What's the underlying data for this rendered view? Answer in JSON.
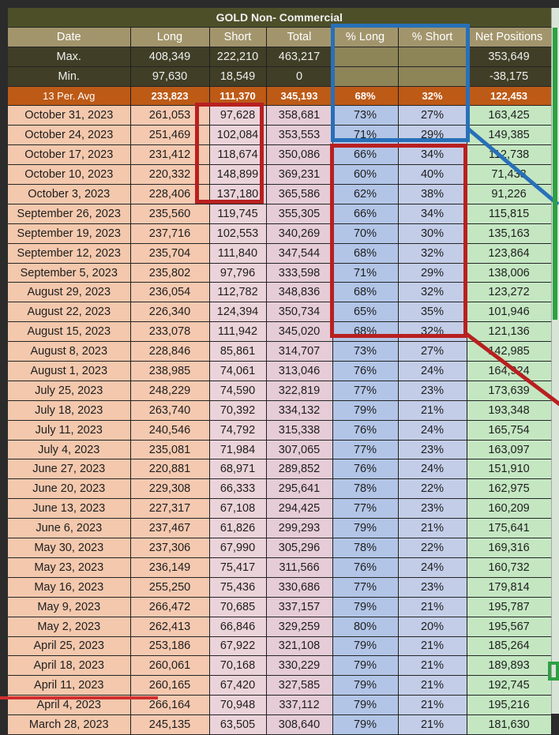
{
  "title": "GOLD Non- Commercial",
  "headers": [
    "Date",
    "Long",
    "Short",
    "Total",
    "% Long",
    "% Short",
    "Net Positions"
  ],
  "max": {
    "label": "Max.",
    "long": "408,349",
    "short": "222,210",
    "total": "463,217",
    "pct_long": "",
    "pct_short": "",
    "net": "353,649"
  },
  "min": {
    "label": "Min.",
    "long": "97,630",
    "short": "18,549",
    "total": "0",
    "pct_long": "",
    "pct_short": "",
    "net": "-38,175"
  },
  "avg": {
    "label": "13 Per. Avg",
    "long": "233,823",
    "short": "111,370",
    "total": "345,193",
    "pct_long": "68%",
    "pct_short": "32%",
    "net": "122,453"
  },
  "rows": [
    [
      "October 31, 2023",
      "261,053",
      "97,628",
      "358,681",
      "73%",
      "27%",
      "163,425"
    ],
    [
      "October 24, 2023",
      "251,469",
      "102,084",
      "353,553",
      "71%",
      "29%",
      "149,385"
    ],
    [
      "October 17, 2023",
      "231,412",
      "118,674",
      "350,086",
      "66%",
      "34%",
      "112,738"
    ],
    [
      "October 10, 2023",
      "220,332",
      "148,899",
      "369,231",
      "60%",
      "40%",
      "71,433"
    ],
    [
      "October 3, 2023",
      "228,406",
      "137,180",
      "365,586",
      "62%",
      "38%",
      "91,226"
    ],
    [
      "September 26, 2023",
      "235,560",
      "119,745",
      "355,305",
      "66%",
      "34%",
      "115,815"
    ],
    [
      "September 19, 2023",
      "237,716",
      "102,553",
      "340,269",
      "70%",
      "30%",
      "135,163"
    ],
    [
      "September 12, 2023",
      "235,704",
      "111,840",
      "347,544",
      "68%",
      "32%",
      "123,864"
    ],
    [
      "September 5, 2023",
      "235,802",
      "97,796",
      "333,598",
      "71%",
      "29%",
      "138,006"
    ],
    [
      "August 29, 2023",
      "236,054",
      "112,782",
      "348,836",
      "68%",
      "32%",
      "123,272"
    ],
    [
      "August 22, 2023",
      "226,340",
      "124,394",
      "350,734",
      "65%",
      "35%",
      "101,946"
    ],
    [
      "August 15, 2023",
      "233,078",
      "111,942",
      "345,020",
      "68%",
      "32%",
      "121,136"
    ],
    [
      "August 8, 2023",
      "228,846",
      "85,861",
      "314,707",
      "73%",
      "27%",
      "142,985"
    ],
    [
      "August 1, 2023",
      "238,985",
      "74,061",
      "313,046",
      "76%",
      "24%",
      "164,924"
    ],
    [
      "July 25, 2023",
      "248,229",
      "74,590",
      "322,819",
      "77%",
      "23%",
      "173,639"
    ],
    [
      "July 18, 2023",
      "263,740",
      "70,392",
      "334,132",
      "79%",
      "21%",
      "193,348"
    ],
    [
      "July 11, 2023",
      "240,546",
      "74,792",
      "315,338",
      "76%",
      "24%",
      "165,754"
    ],
    [
      "July 4, 2023",
      "235,081",
      "71,984",
      "307,065",
      "77%",
      "23%",
      "163,097"
    ],
    [
      "June 27, 2023",
      "220,881",
      "68,971",
      "289,852",
      "76%",
      "24%",
      "151,910"
    ],
    [
      "June 20, 2023",
      "229,308",
      "66,333",
      "295,641",
      "78%",
      "22%",
      "162,975"
    ],
    [
      "June 13, 2023",
      "227,317",
      "67,108",
      "294,425",
      "77%",
      "23%",
      "160,209"
    ],
    [
      "June 6, 2023",
      "237,467",
      "61,826",
      "299,293",
      "79%",
      "21%",
      "175,641"
    ],
    [
      "May 30, 2023",
      "237,306",
      "67,990",
      "305,296",
      "78%",
      "22%",
      "169,316"
    ],
    [
      "May 23, 2023",
      "236,149",
      "75,417",
      "311,566",
      "76%",
      "24%",
      "160,732"
    ],
    [
      "May 16, 2023",
      "255,250",
      "75,436",
      "330,686",
      "77%",
      "23%",
      "179,814"
    ],
    [
      "May 9, 2023",
      "266,472",
      "70,685",
      "337,157",
      "79%",
      "21%",
      "195,787"
    ],
    [
      "May 2, 2023",
      "262,413",
      "66,846",
      "329,259",
      "80%",
      "20%",
      "195,567"
    ],
    [
      "April 25, 2023",
      "253,186",
      "67,922",
      "321,108",
      "79%",
      "21%",
      "185,264"
    ],
    [
      "April 18, 2023",
      "260,061",
      "70,168",
      "330,229",
      "79%",
      "21%",
      "189,893"
    ],
    [
      "April 11, 2023",
      "260,165",
      "67,420",
      "327,585",
      "79%",
      "21%",
      "192,745"
    ],
    [
      "April 4, 2023",
      "266,164",
      "70,948",
      "337,112",
      "79%",
      "21%",
      "195,216"
    ],
    [
      "March 28, 2023",
      "245,135",
      "63,505",
      "308,640",
      "79%",
      "21%",
      "181,630"
    ]
  ],
  "colors": {
    "title_bg": "#4d4f29",
    "header_bg": "#a2956c",
    "avg_bg": "#bd5a16",
    "highlight_blue": "#2870b8",
    "highlight_red": "#b82020",
    "highlight_green": "#2ea043"
  }
}
